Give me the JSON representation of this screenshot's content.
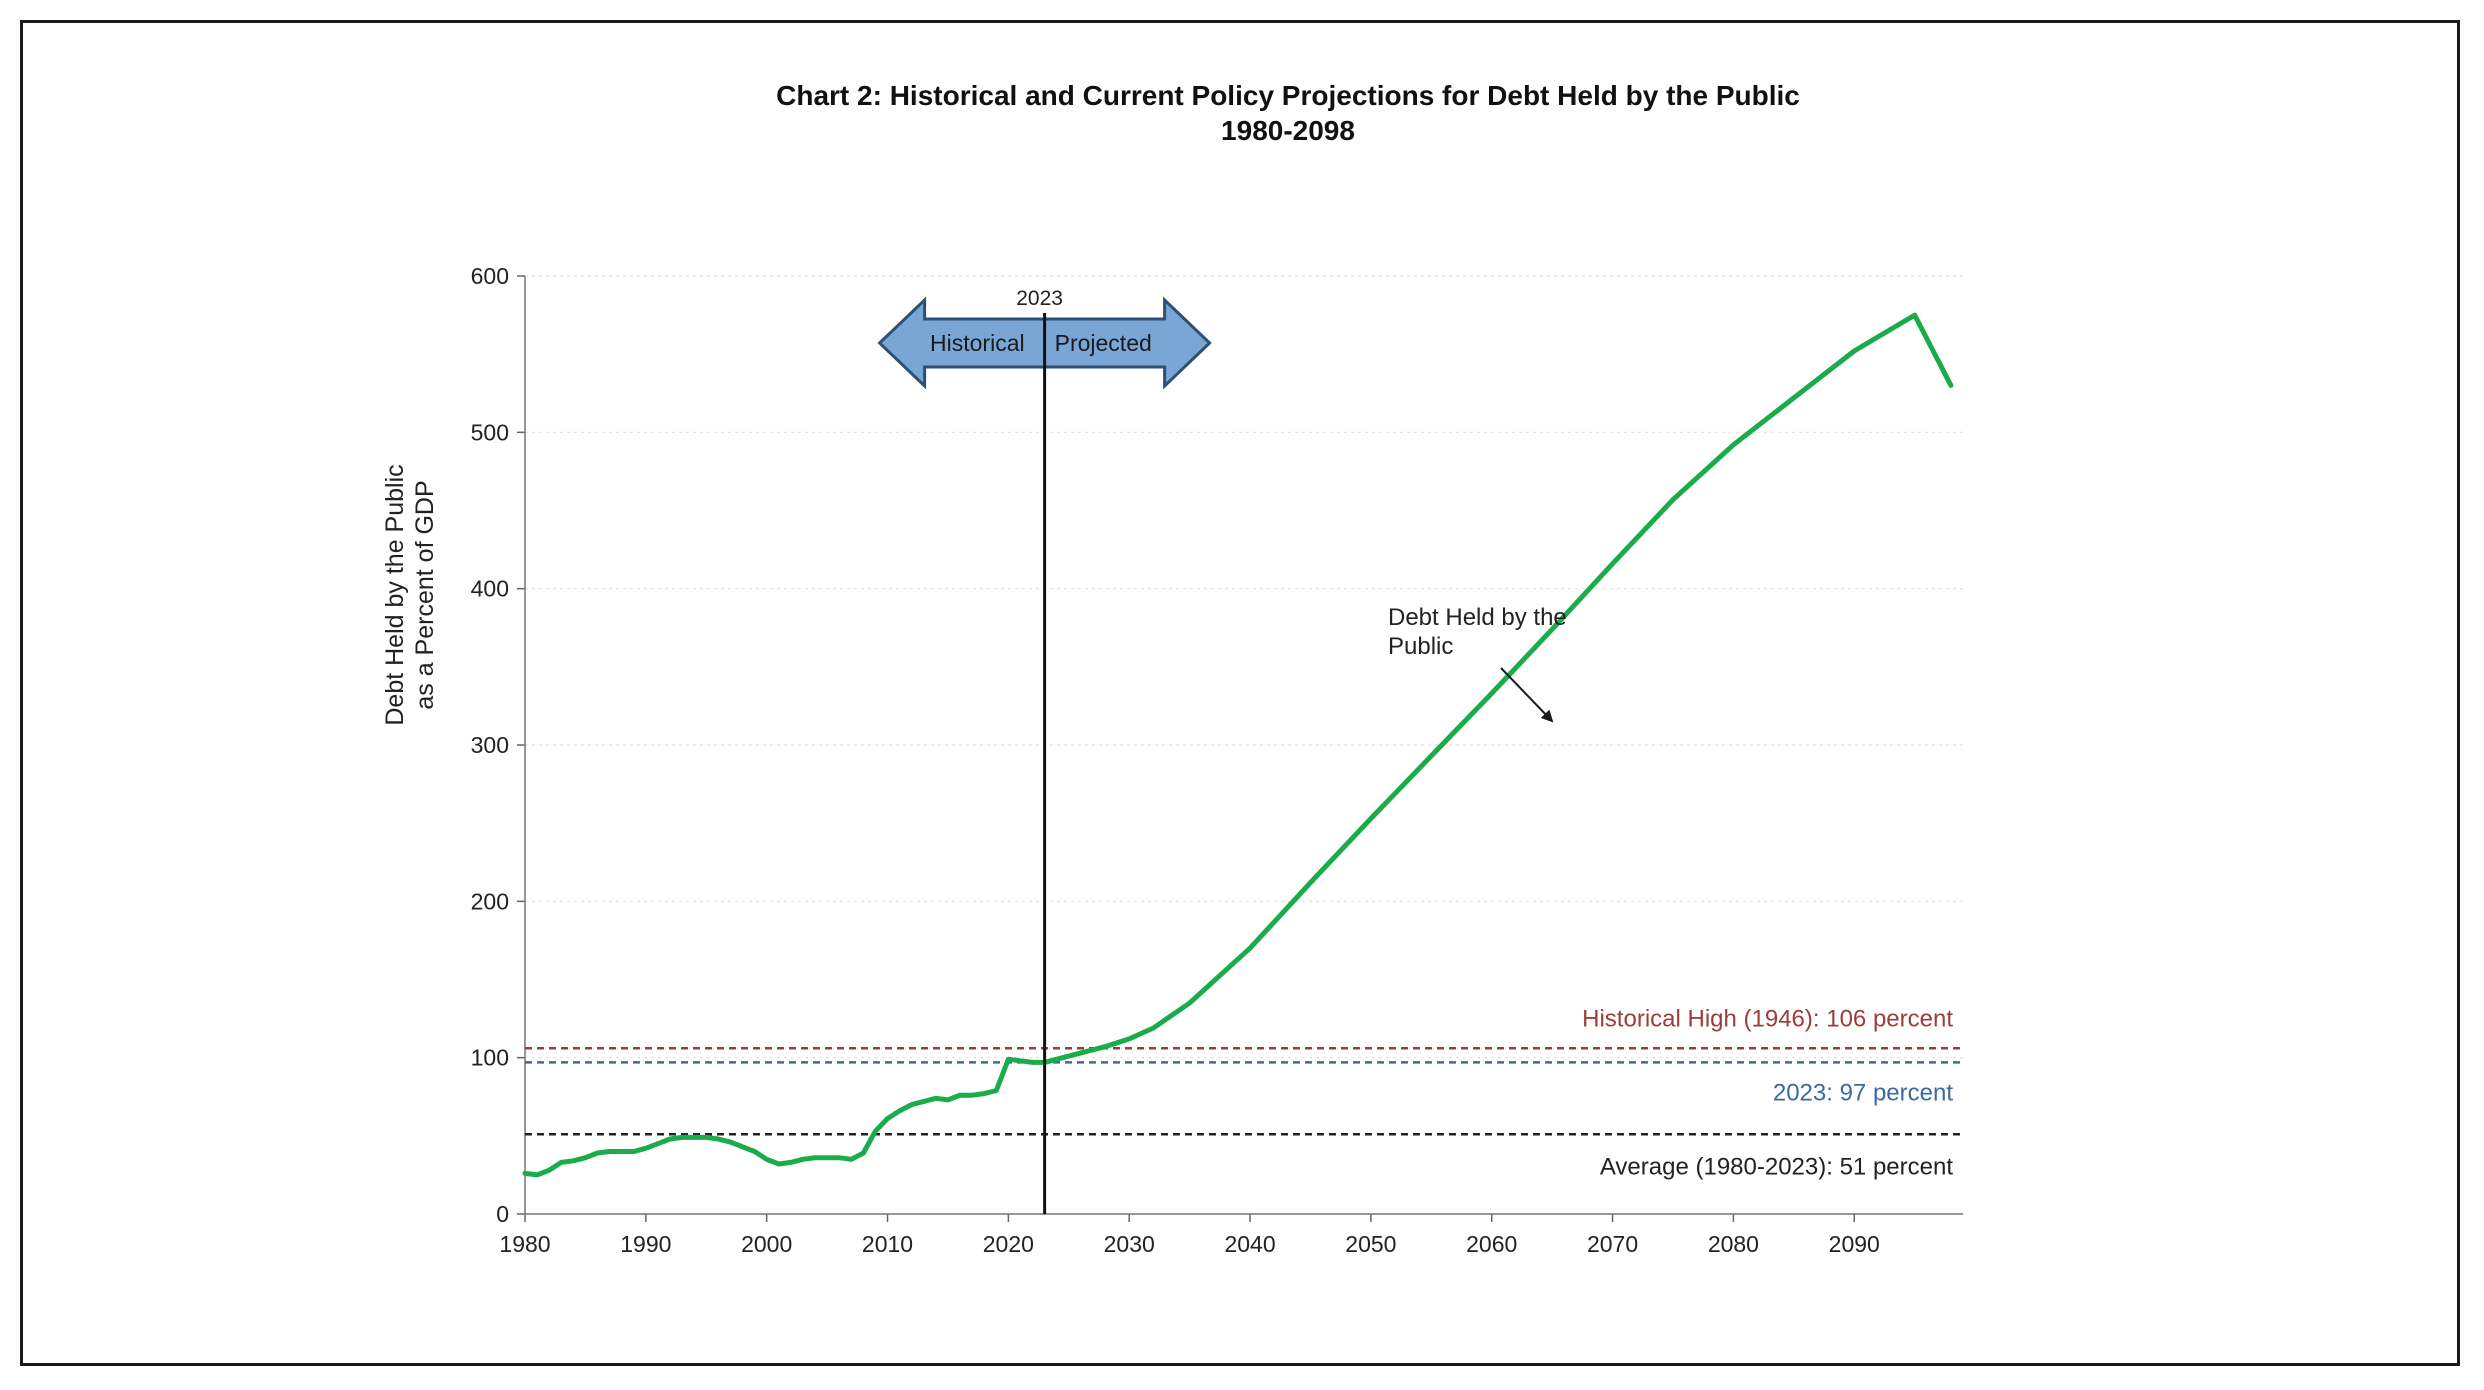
{
  "chart_data": {
    "type": "line",
    "title": "Chart 2:  Historical and Current Policy Projections for Debt Held by the Public",
    "subtitle": "1980-2098",
    "ylabel_line1": "Debt Held by the Public",
    "ylabel_line2": "as a Percent of GDP",
    "xlim": [
      1980,
      2099
    ],
    "ylim": [
      0,
      600
    ],
    "x_ticks": [
      1980,
      1990,
      2000,
      2010,
      2020,
      2030,
      2040,
      2050,
      2060,
      2070,
      2080,
      2090
    ],
    "y_ticks": [
      0,
      100,
      200,
      300,
      400,
      500,
      600
    ],
    "grid": "horizontal dotted",
    "divider": {
      "year": 2023,
      "label": "2023",
      "left_label": "Historical",
      "right_label": "Projected",
      "arrow_color": "#7aa6d6"
    },
    "series": [
      {
        "color": "#1aab4b",
        "x": [
          1980,
          1981,
          1982,
          1983,
          1984,
          1985,
          1986,
          1987,
          1988,
          1989,
          1990,
          1991,
          1992,
          1993,
          1994,
          1995,
          1996,
          1997,
          1998,
          1999,
          2000,
          2001,
          2002,
          2003,
          2004,
          2005,
          2006,
          2007,
          2008,
          2009,
          2010,
          2011,
          2012,
          2013,
          2014,
          2015,
          2016,
          2017,
          2018,
          2019,
          2020,
          2021,
          2022,
          2023,
          2025,
          2028,
          2030,
          2032,
          2035,
          2040,
          2045,
          2050,
          2055,
          2060,
          2065,
          2070,
          2075,
          2080,
          2085,
          2090,
          2095,
          2098
        ],
        "values": [
          26,
          25,
          28,
          33,
          34,
          36,
          39,
          40,
          40,
          40,
          42,
          45,
          48,
          49,
          49,
          49,
          48,
          46,
          43,
          40,
          35,
          32,
          33,
          35,
          36,
          36,
          36,
          35,
          39,
          53,
          61,
          66,
          70,
          72,
          74,
          73,
          76,
          76,
          77,
          79,
          99,
          98,
          97,
          97,
          101,
          107,
          112,
          119,
          135,
          170,
          212,
          253,
          293,
          333,
          374,
          416,
          457,
          492,
          522,
          552,
          575,
          530
        ]
      }
    ],
    "reference_lines": [
      {
        "value": 106,
        "label": "Historical High (1946): 106 percent",
        "color": "#9e3b3b"
      },
      {
        "value": 97,
        "label": "2023: 97 percent",
        "color": "#3a6a9e"
      },
      {
        "value": 51,
        "label": "Average (1980-2023): 51 percent",
        "color": "#222222"
      }
    ],
    "annotation": {
      "line1": "Debt Held by the",
      "line2": "Public"
    }
  }
}
